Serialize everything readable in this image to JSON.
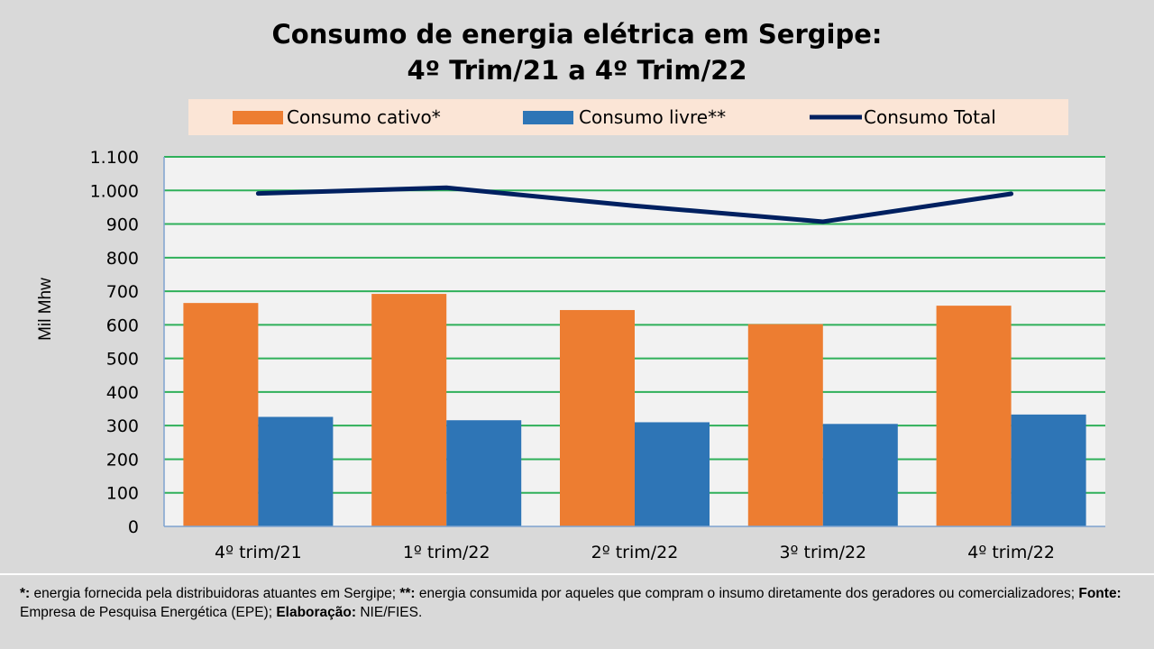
{
  "chart_data": {
    "type": "bar",
    "title": [
      "Consumo de energia elétrica em Sergipe:",
      "4º Trim/21 a 4º Trim/22"
    ],
    "xlabel": "",
    "ylabel": "Mil Mhw",
    "ylim": [
      0,
      1100
    ],
    "yticks": [
      0,
      100,
      200,
      300,
      400,
      500,
      600,
      700,
      800,
      900,
      1000,
      1100
    ],
    "ytick_labels": [
      "0",
      "100",
      "200",
      "300",
      "400",
      "500",
      "600",
      "700",
      "800",
      "900",
      "1.000",
      "1.100"
    ],
    "grid": true,
    "legend_position": "top",
    "categories": [
      "4º trim/21",
      "1º trim/22",
      "2º trim/22",
      "3º trim/22",
      "4º trim/22"
    ],
    "series": [
      {
        "name": "Consumo cativo*",
        "type": "bar",
        "color": "#ed7d31",
        "values": [
          665,
          692,
          644,
          602,
          657
        ]
      },
      {
        "name": "Consumo livre**",
        "type": "bar",
        "color": "#2e75b6",
        "values": [
          326,
          316,
          310,
          305,
          333
        ]
      },
      {
        "name": "Consumo Total",
        "type": "line",
        "color": "#002060",
        "values": [
          991,
          1008,
          954,
          907,
          990
        ]
      }
    ],
    "colors": {
      "gridline": "#2fb05a",
      "plot_bg": "#f2f2f2",
      "legend_bg": "#fbe5d6",
      "page_bg": "#d9d9d9"
    }
  },
  "footnote": {
    "p1_label": "*:",
    "p1_text": " energia fornecida pela distribuidoras atuantes em Sergipe; ",
    "p2_label": "**:",
    "p2_text": " energia consumida por aqueles que compram o insumo diretamente  dos geradores ou comercializadores; ",
    "p3_label": "Fonte:",
    "p3_text": " Empresa de Pesquisa Energética (EPE); ",
    "p4_label": "Elaboração:",
    "p4_text": " NIE/FIES."
  }
}
